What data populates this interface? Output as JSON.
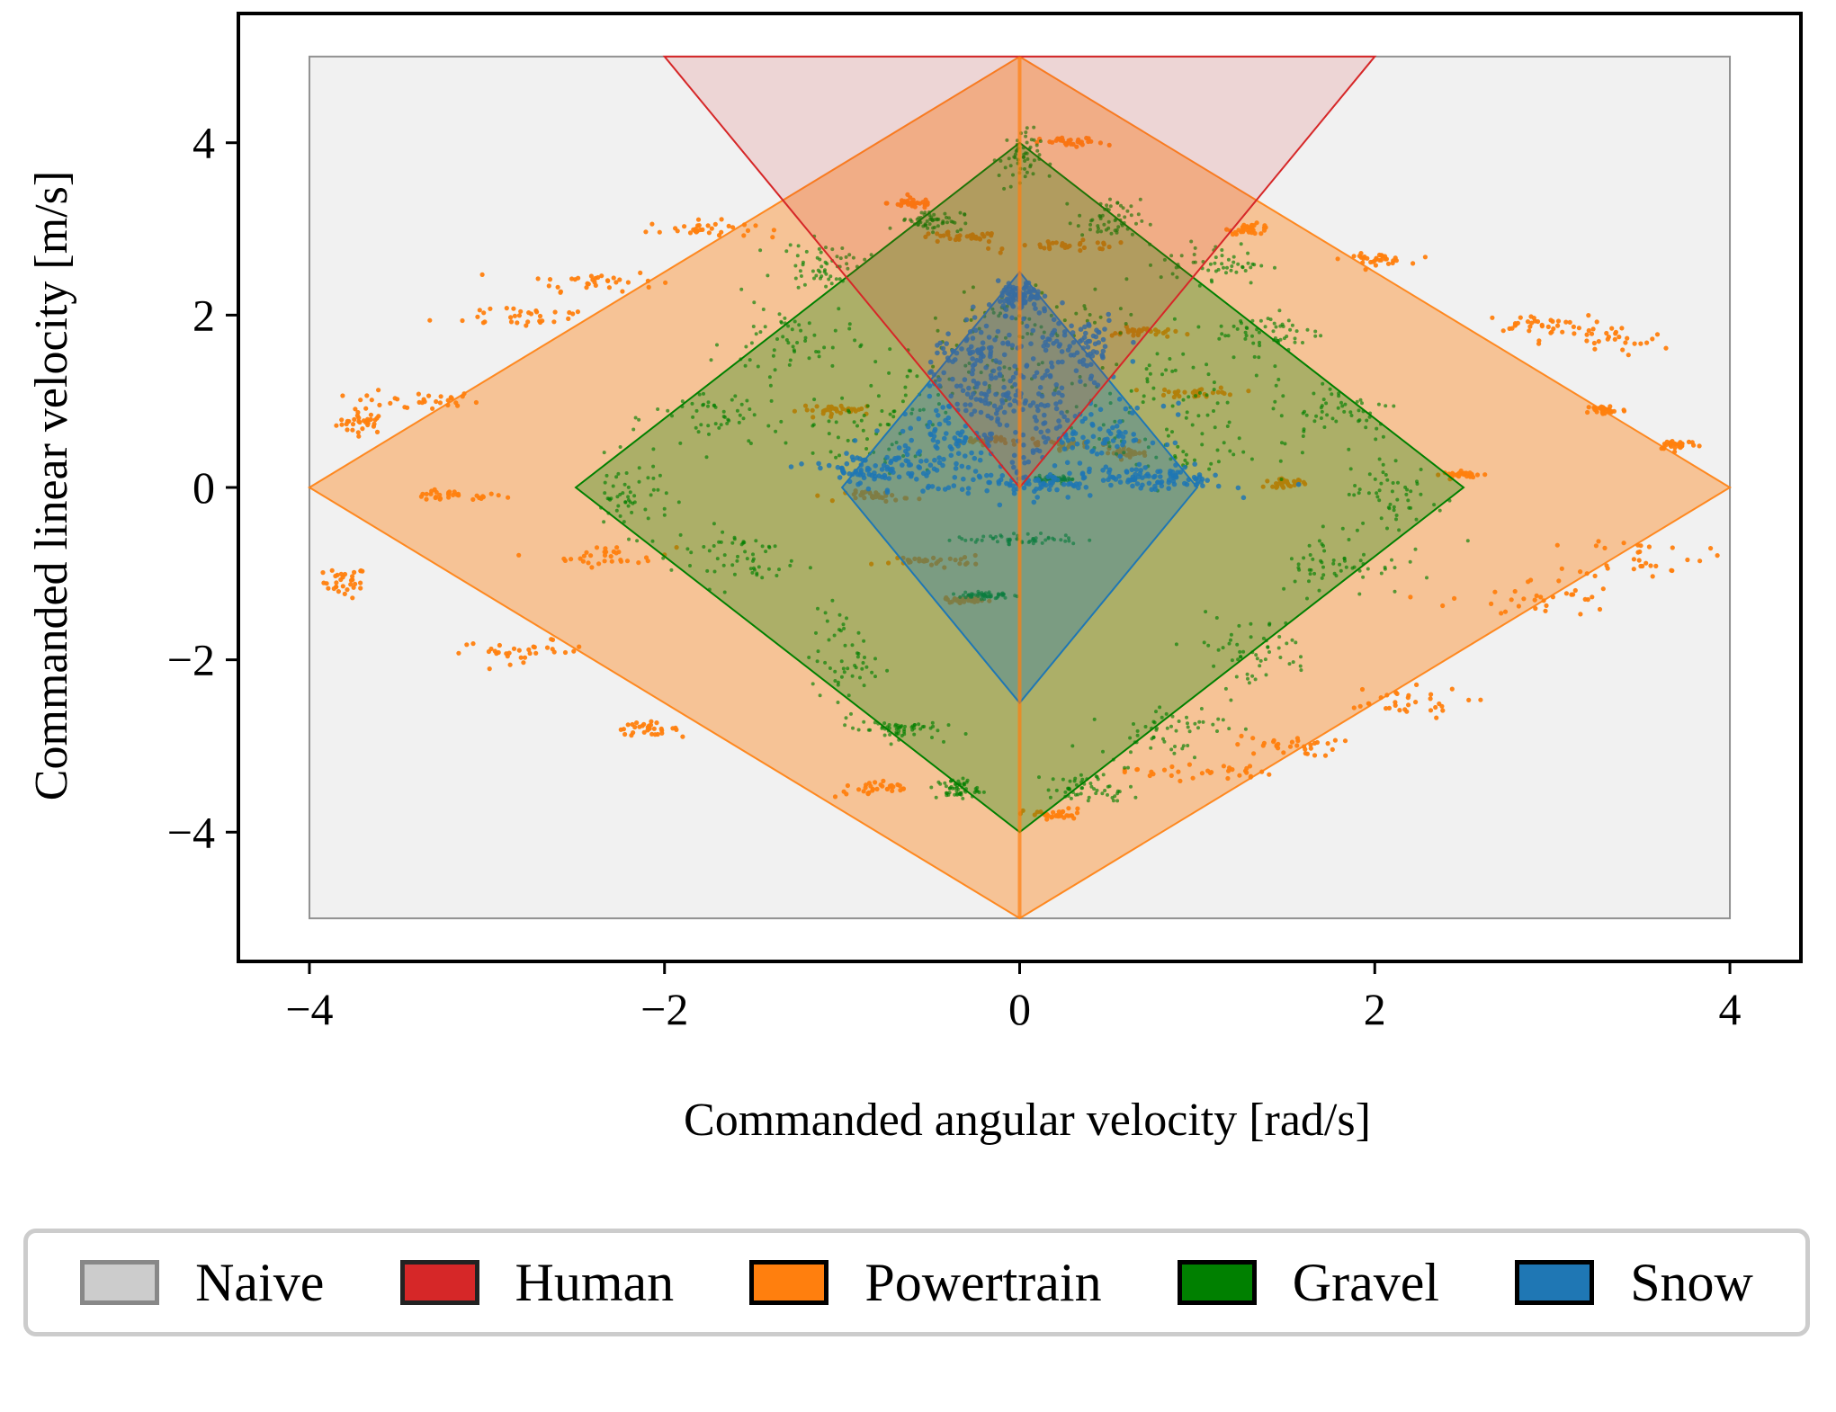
{
  "chart_data": {
    "type": "scatter",
    "xlabel": "Commanded angular velocity [rad/s]",
    "ylabel": "Commanded linear velocity [m/s]",
    "xlim": [
      -4.4,
      4.4
    ],
    "ylim": [
      -5.5,
      5.5
    ],
    "xticks": [
      -4,
      -2,
      0,
      2,
      4
    ],
    "yticks": [
      -4,
      -2,
      0,
      2,
      4
    ],
    "xtick_labels": [
      "−4",
      "−2",
      "0",
      "2",
      "4"
    ],
    "ytick_labels": [
      "−4",
      "−2",
      "0",
      "2",
      "4"
    ],
    "legend_position": "bottom",
    "regions": [
      {
        "name": "Naive",
        "color": "#cccccc",
        "edge": "#777777",
        "polygon": [
          [
            -4,
            -5
          ],
          [
            4,
            -5
          ],
          [
            4,
            5
          ],
          [
            -4,
            5
          ]
        ]
      },
      {
        "name": "Human",
        "color": "#d62728",
        "edge": "#d62728",
        "polygon": [
          [
            0,
            0
          ],
          [
            2,
            5
          ],
          [
            -2,
            5
          ]
        ]
      },
      {
        "name": "Powertrain",
        "color": "#ff7f0e",
        "edge": "#ff7f0e",
        "polygon": [
          [
            -4,
            0
          ],
          [
            0,
            5
          ],
          [
            4,
            0
          ],
          [
            0,
            -5
          ]
        ]
      },
      {
        "name": "Gravel",
        "color": "#008000",
        "edge": "#008000",
        "polygon": [
          [
            -2.5,
            0
          ],
          [
            0,
            4
          ],
          [
            2.5,
            0
          ],
          [
            0,
            -4
          ]
        ]
      },
      {
        "name": "Snow",
        "color": "#1f77b4",
        "edge": "#1f77b4",
        "polygon": [
          [
            -1,
            0
          ],
          [
            0,
            2.5
          ],
          [
            1,
            0
          ],
          [
            0,
            -2.5
          ]
        ]
      }
    ],
    "series": [
      {
        "name": "Powertrain",
        "color": "#ff7f0e",
        "clusters": [
          [
            -3.7,
            0.75,
            0.12,
            0.1
          ],
          [
            -3.8,
            -1.1,
            0.1,
            0.15
          ],
          [
            -3.2,
            -0.1,
            0.25,
            0.05
          ],
          [
            -3.4,
            1.0,
            0.3,
            0.1
          ],
          [
            -2.8,
            2.0,
            0.4,
            0.12
          ],
          [
            -2.4,
            2.4,
            0.3,
            0.1
          ],
          [
            -1.8,
            3.0,
            0.25,
            0.08
          ],
          [
            -2.3,
            -0.8,
            0.3,
            0.1
          ],
          [
            -2.8,
            -1.9,
            0.3,
            0.1
          ],
          [
            -2.1,
            -2.8,
            0.15,
            0.06
          ],
          [
            -0.8,
            -3.5,
            0.2,
            0.08
          ],
          [
            -0.6,
            3.3,
            0.12,
            0.05
          ],
          [
            -0.35,
            2.9,
            0.2,
            0.05
          ],
          [
            0.3,
            2.8,
            0.3,
            0.05
          ],
          [
            1.0,
            1.1,
            0.2,
            0.05
          ],
          [
            1.3,
            3.0,
            0.1,
            0.05
          ],
          [
            2.0,
            2.65,
            0.15,
            0.05
          ],
          [
            2.9,
            1.9,
            0.25,
            0.08
          ],
          [
            3.3,
            1.7,
            0.3,
            0.15
          ],
          [
            3.3,
            0.9,
            0.1,
            0.05
          ],
          [
            3.7,
            0.5,
            0.1,
            0.05
          ],
          [
            2.9,
            -1.3,
            0.4,
            0.2
          ],
          [
            3.5,
            -0.8,
            0.3,
            0.2
          ],
          [
            2.1,
            -2.5,
            0.35,
            0.15
          ],
          [
            1.5,
            -3.0,
            0.25,
            0.1
          ],
          [
            1.0,
            -3.3,
            0.35,
            0.08
          ],
          [
            0.2,
            -3.8,
            0.15,
            0.06
          ],
          [
            0.3,
            4.0,
            0.15,
            0.05
          ],
          [
            -0.5,
            -0.85,
            0.25,
            0.05
          ],
          [
            -0.3,
            -1.3,
            0.1,
            0.03
          ],
          [
            0.2,
            0.5,
            0.3,
            0.05
          ],
          [
            0.6,
            0.4,
            0.1,
            0.04
          ],
          [
            -1.0,
            0.9,
            0.2,
            0.05
          ],
          [
            -0.8,
            -0.1,
            0.15,
            0.05
          ],
          [
            1.5,
            0.05,
            0.1,
            0.04
          ],
          [
            2.5,
            0.15,
            0.1,
            0.03
          ],
          [
            -0.2,
            0.55,
            0.1,
            0.04
          ],
          [
            0.7,
            1.8,
            0.15,
            0.05
          ]
        ]
      },
      {
        "name": "Gravel",
        "color": "#008000",
        "clusters": [
          [
            -2.2,
            -0.1,
            0.2,
            0.35
          ],
          [
            -1.7,
            0.8,
            0.3,
            0.35
          ],
          [
            -1.3,
            1.7,
            0.3,
            0.4
          ],
          [
            -1.1,
            2.6,
            0.2,
            0.2
          ],
          [
            -0.5,
            3.1,
            0.15,
            0.1
          ],
          [
            0.0,
            3.8,
            0.1,
            0.3
          ],
          [
            0.5,
            3.1,
            0.15,
            0.2
          ],
          [
            1.1,
            2.6,
            0.25,
            0.2
          ],
          [
            1.4,
            1.8,
            0.25,
            0.2
          ],
          [
            1.8,
            0.9,
            0.3,
            0.3
          ],
          [
            2.1,
            -0.1,
            0.25,
            0.4
          ],
          [
            1.8,
            -0.9,
            0.3,
            0.3
          ],
          [
            1.3,
            -1.9,
            0.3,
            0.35
          ],
          [
            0.8,
            -2.8,
            0.3,
            0.25
          ],
          [
            0.4,
            -3.5,
            0.2,
            0.15
          ],
          [
            -0.35,
            -3.5,
            0.1,
            0.1
          ],
          [
            -1.0,
            -2.0,
            0.15,
            0.5
          ],
          [
            -0.7,
            -2.8,
            0.2,
            0.1
          ],
          [
            -1.6,
            -0.8,
            0.3,
            0.3
          ],
          [
            -0.9,
            0.6,
            0.4,
            0.4
          ],
          [
            0.9,
            0.5,
            0.4,
            0.4
          ],
          [
            0.0,
            -0.6,
            0.3,
            0.05
          ],
          [
            0.1,
            2.0,
            0.5,
            0.3
          ],
          [
            -0.3,
            1.3,
            0.5,
            0.4
          ],
          [
            0.7,
            1.2,
            0.5,
            0.4
          ],
          [
            -0.2,
            -1.25,
            0.12,
            0.04
          ],
          [
            0.2,
            0.1,
            0.1,
            0.03
          ]
        ]
      },
      {
        "name": "Snow",
        "color": "#1f77b4",
        "clusters": [
          [
            0.0,
            2.2,
            0.1,
            0.15
          ],
          [
            -0.2,
            1.5,
            0.25,
            0.3
          ],
          [
            0.3,
            1.6,
            0.25,
            0.35
          ],
          [
            -0.4,
            0.6,
            0.35,
            0.3
          ],
          [
            0.4,
            0.6,
            0.35,
            0.3
          ],
          [
            -0.8,
            0.2,
            0.35,
            0.15
          ],
          [
            0.8,
            0.1,
            0.3,
            0.12
          ],
          [
            0.0,
            0.05,
            0.45,
            0.15
          ],
          [
            -0.1,
            1.0,
            0.3,
            0.25
          ]
        ]
      }
    ]
  },
  "legend": {
    "items": [
      {
        "label": "Naive",
        "fill": "#cccccc",
        "edge": "#888888"
      },
      {
        "label": "Human",
        "fill": "#d62728",
        "edge": "#222222"
      },
      {
        "label": "Powertrain",
        "fill": "#ff7f0e",
        "edge": "#000000"
      },
      {
        "label": "Gravel",
        "fill": "#008000",
        "edge": "#000000"
      },
      {
        "label": "Snow",
        "fill": "#1f77b4",
        "edge": "#000000"
      }
    ]
  }
}
